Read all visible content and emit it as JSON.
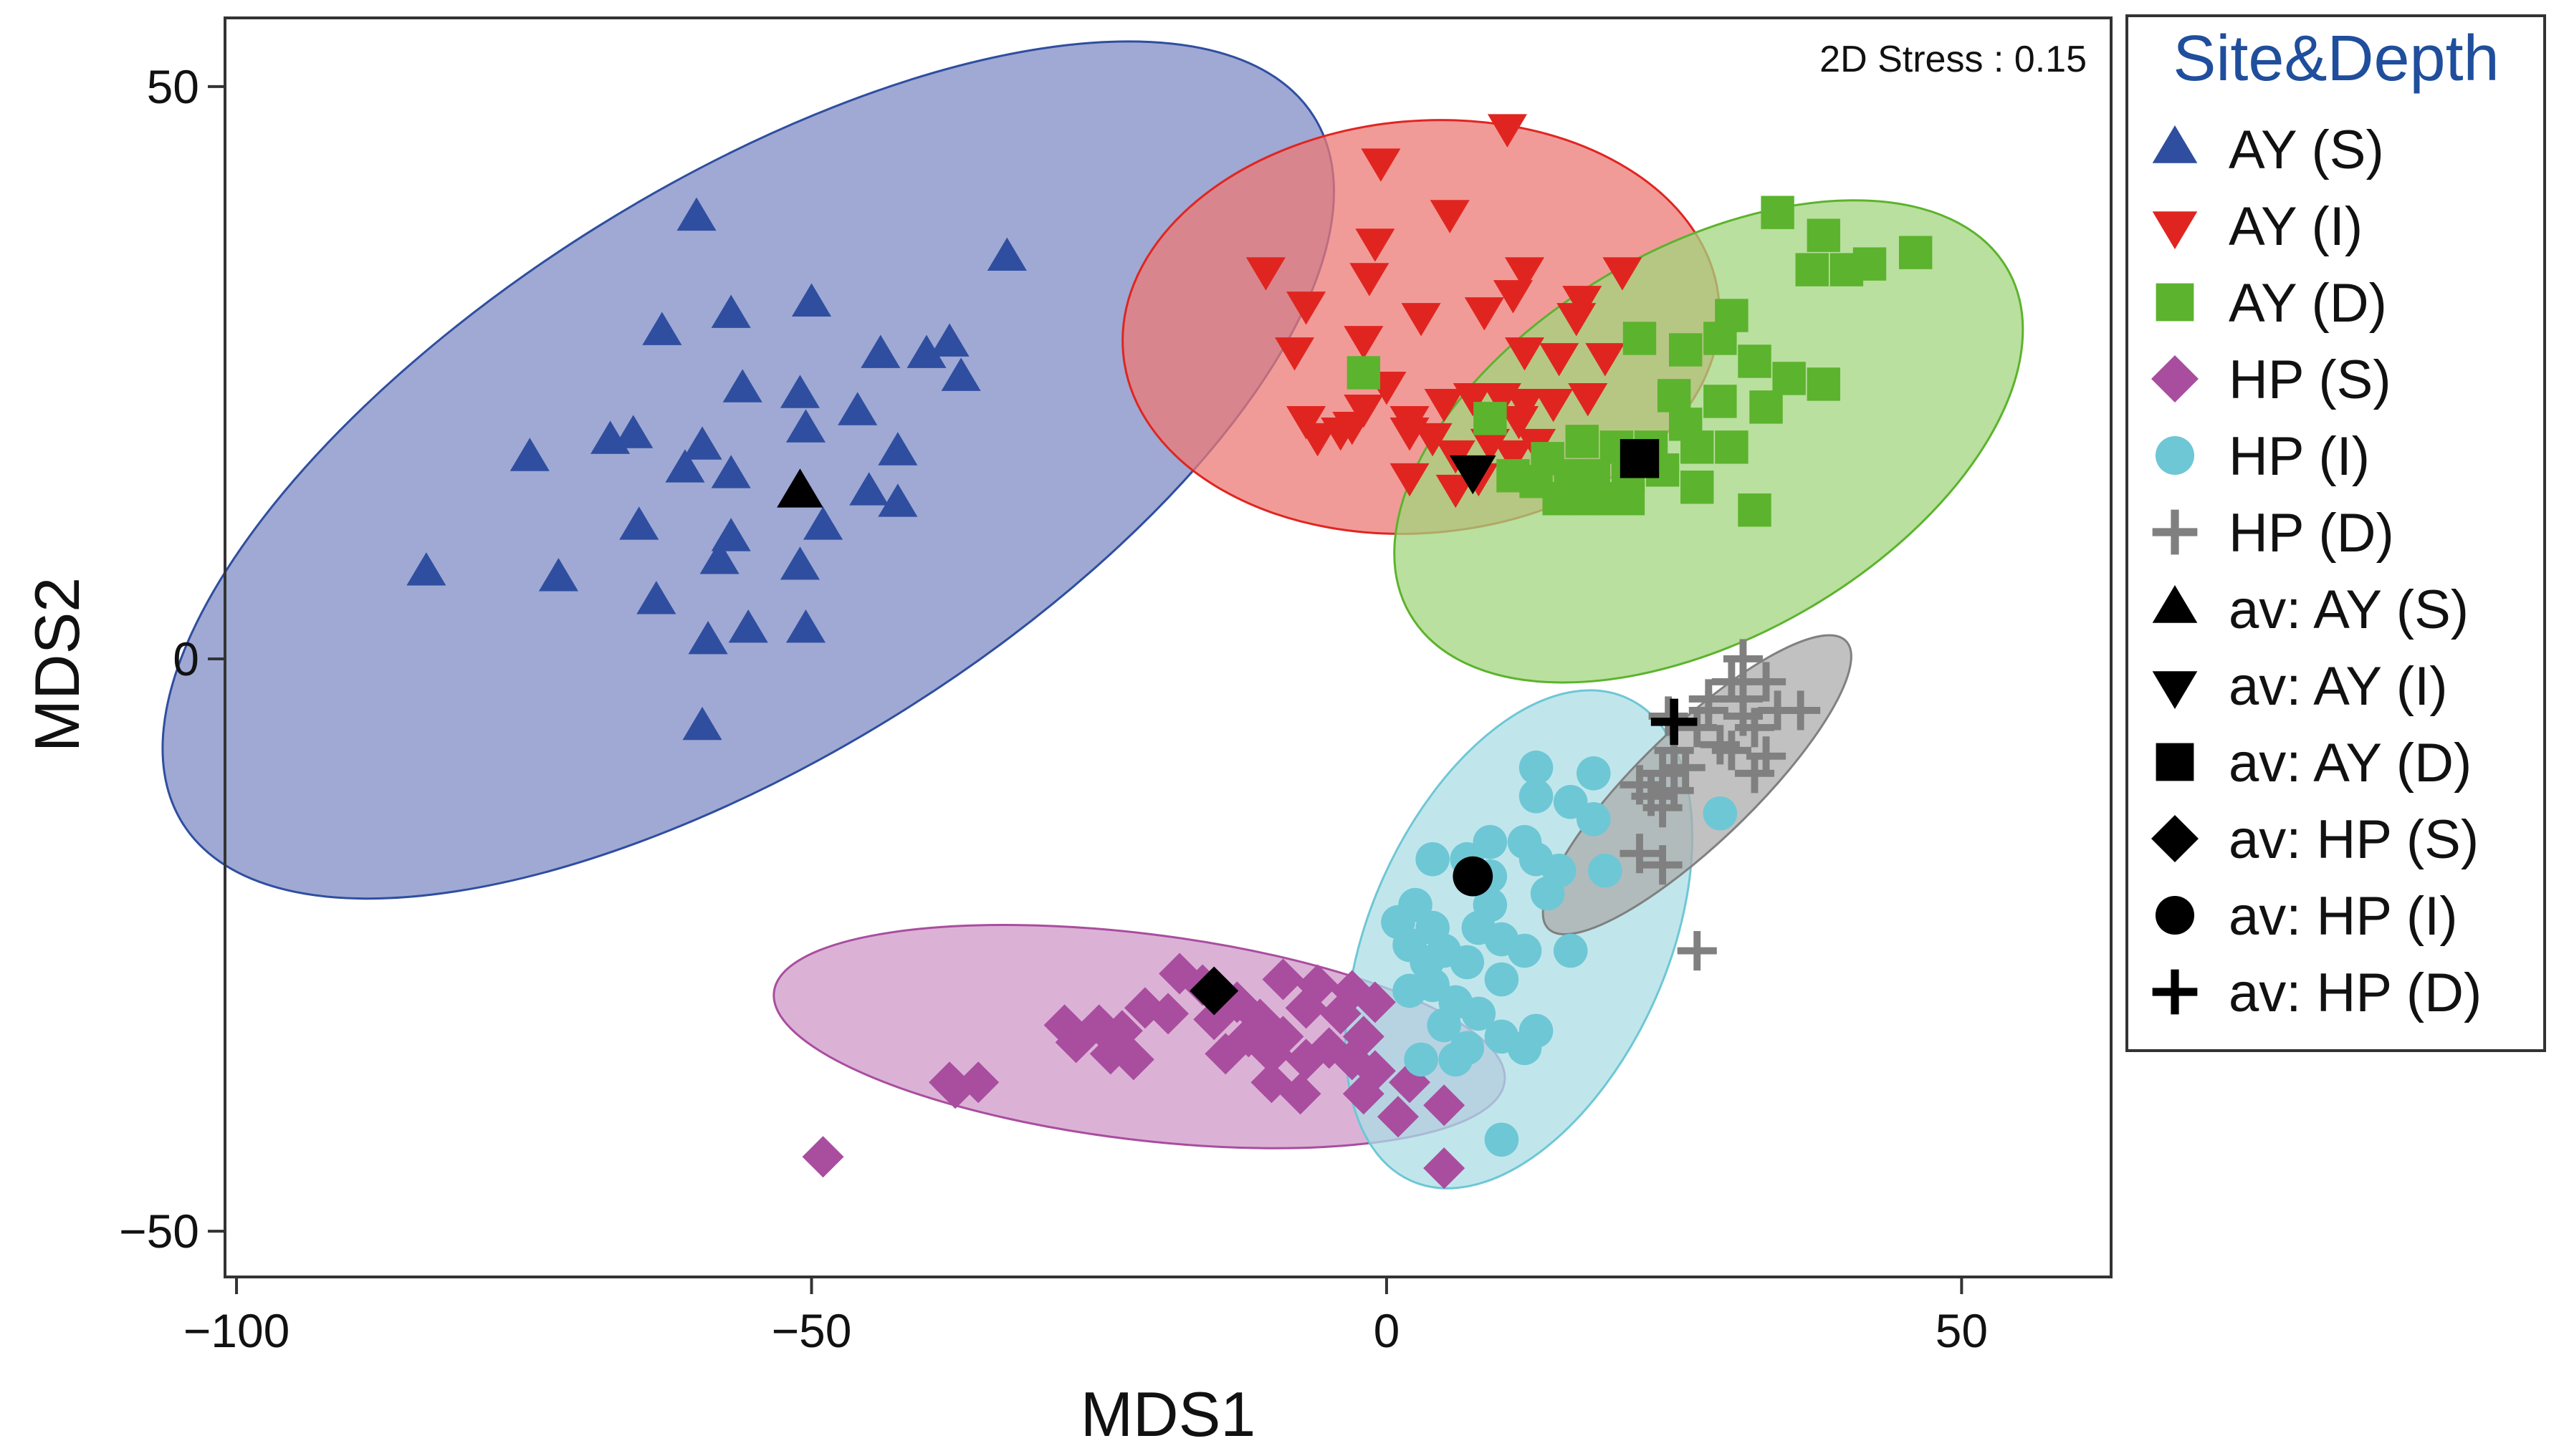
{
  "chart_data": {
    "type": "scatter",
    "title": "",
    "xlabel": "MDS1",
    "ylabel": "MDS2",
    "xlim": [
      -101,
      63
    ],
    "ylim": [
      -54,
      56
    ],
    "xticks": [
      -100,
      -50,
      0,
      50
    ],
    "yticks": [
      -50,
      0,
      50
    ],
    "xtick_labels": [
      "−100",
      "−50",
      "0",
      "50"
    ],
    "ytick_labels": [
      "−50",
      "0",
      "50"
    ],
    "grid": false,
    "annotation": "2D Stress : 0.15",
    "legend": {
      "title": "Site&Depth",
      "position": "right, outside plot"
    },
    "series": [
      {
        "name": "AY (S)",
        "marker": "triangle-up",
        "color": "#2f4ea0",
        "ellipse_color": "#7f8cc4",
        "ellipse": {
          "cx": -55.5,
          "cy": 16.5,
          "rx": 58,
          "ry": 25,
          "angle_deg": 32
        },
        "points": [
          [
            -83.5,
            7.5
          ],
          [
            -60,
            38.5
          ],
          [
            -33,
            35
          ],
          [
            -50,
            31
          ],
          [
            -57,
            30
          ],
          [
            -63,
            28.5
          ],
          [
            -44,
            26.5
          ],
          [
            -40,
            26.5
          ],
          [
            -38,
            27.5
          ],
          [
            -37,
            24.5
          ],
          [
            -56,
            23.5
          ],
          [
            -51,
            23
          ],
          [
            -46,
            21.5
          ],
          [
            -50.5,
            20
          ],
          [
            -67.5,
            19
          ],
          [
            -65.5,
            19.5
          ],
          [
            -59.5,
            18.5
          ],
          [
            -74.5,
            17.5
          ],
          [
            -61,
            16.5
          ],
          [
            -57,
            16
          ],
          [
            -42.5,
            18
          ],
          [
            -45,
            14.5
          ],
          [
            -42.5,
            13.5
          ],
          [
            -49,
            11.5
          ],
          [
            -65,
            11.5
          ],
          [
            -57,
            10.5
          ],
          [
            -51,
            8
          ],
          [
            -58,
            8.5
          ],
          [
            -72,
            7
          ],
          [
            -63.5,
            5
          ],
          [
            -55.5,
            2.5
          ],
          [
            -50.5,
            2.5
          ],
          [
            -59,
            1.5
          ],
          [
            -59.5,
            -6
          ]
        ]
      },
      {
        "name": "AY (I)",
        "marker": "triangle-down",
        "color": "#e02520",
        "ellipse_color": "#ec7a75",
        "ellipse": {
          "cx": 3,
          "cy": 29,
          "rx": 26,
          "ry": 18,
          "angle_deg": 5
        },
        "points": [
          [
            10.5,
            46.5
          ],
          [
            -0.5,
            43.5
          ],
          [
            5.5,
            39
          ],
          [
            -1,
            36.5
          ],
          [
            -10.5,
            34
          ],
          [
            -1.5,
            33.5
          ],
          [
            12,
            34
          ],
          [
            20.5,
            34
          ],
          [
            11,
            32
          ],
          [
            17,
            31.5
          ],
          [
            -7,
            31
          ],
          [
            3,
            30
          ],
          [
            8.5,
            30.5
          ],
          [
            16.5,
            30
          ],
          [
            -2,
            28
          ],
          [
            -8,
            27
          ],
          [
            12,
            27
          ],
          [
            15,
            26.5
          ],
          [
            19,
            26.5
          ],
          [
            0,
            24
          ],
          [
            5,
            22.5
          ],
          [
            7.5,
            23
          ],
          [
            10,
            23
          ],
          [
            12,
            22.5
          ],
          [
            14.5,
            22.5
          ],
          [
            17.5,
            23
          ],
          [
            -2,
            22
          ],
          [
            2,
            21
          ],
          [
            9,
            21
          ],
          [
            11.5,
            21
          ],
          [
            -7,
            21
          ],
          [
            -3,
            20.5
          ],
          [
            2,
            20
          ],
          [
            -4,
            20
          ],
          [
            -6,
            19.5
          ],
          [
            4,
            19.5
          ],
          [
            9,
            19
          ],
          [
            13,
            19
          ],
          [
            6,
            18
          ],
          [
            11,
            18
          ],
          [
            2,
            16
          ],
          [
            8,
            16
          ],
          [
            6,
            15
          ]
        ]
      },
      {
        "name": "AY (D)",
        "marker": "square",
        "color": "#5cb32e",
        "ellipse_color": "#a2d67e",
        "ellipse": {
          "cx": 28,
          "cy": 19,
          "rx": 30,
          "ry": 17,
          "angle_deg": 30
        },
        "points": [
          [
            34,
            39
          ],
          [
            38,
            37
          ],
          [
            42,
            34.5
          ],
          [
            46,
            35.5
          ],
          [
            37,
            34
          ],
          [
            40,
            34
          ],
          [
            30,
            30
          ],
          [
            22,
            28
          ],
          [
            29,
            28
          ],
          [
            26,
            27
          ],
          [
            32,
            26
          ],
          [
            35,
            24.5
          ],
          [
            38,
            24
          ],
          [
            25,
            23
          ],
          [
            29,
            22.5
          ],
          [
            33,
            22
          ],
          [
            26,
            20.5
          ],
          [
            -2,
            25
          ],
          [
            9,
            21
          ],
          [
            17,
            19
          ],
          [
            20,
            18.5
          ],
          [
            23,
            18.5
          ],
          [
            27,
            18.5
          ],
          [
            30,
            18.5
          ],
          [
            14,
            17.5
          ],
          [
            11,
            16
          ],
          [
            16,
            16
          ],
          [
            18,
            16
          ],
          [
            21,
            16
          ],
          [
            24,
            16.5
          ],
          [
            27,
            15
          ],
          [
            13,
            15.5
          ],
          [
            15,
            14
          ],
          [
            17,
            14
          ],
          [
            19,
            14
          ],
          [
            21,
            14
          ],
          [
            32,
            13
          ]
        ]
      },
      {
        "name": "HP (S)",
        "marker": "diamond",
        "color": "#a94d9f",
        "ellipse_color": "#cf98c8",
        "ellipse": {
          "cx": -21.5,
          "cy": -33,
          "rx": 32,
          "ry": 9,
          "angle_deg": -7
        },
        "points": [
          [
            -18,
            -27.5
          ],
          [
            -16,
            -28.5
          ],
          [
            -13,
            -30
          ],
          [
            -9,
            -28
          ],
          [
            -6,
            -28.5
          ],
          [
            -3,
            -29
          ],
          [
            -1,
            -30
          ],
          [
            -21,
            -30.5
          ],
          [
            -19,
            -31
          ],
          [
            -15,
            -31.5
          ],
          [
            -11,
            -31.5
          ],
          [
            -7,
            -30.5
          ],
          [
            -4,
            -31
          ],
          [
            -28,
            -32
          ],
          [
            -25,
            -32
          ],
          [
            -23,
            -32.5
          ],
          [
            -12,
            -33
          ],
          [
            -9,
            -33
          ],
          [
            -5,
            -34
          ],
          [
            -2,
            -33
          ],
          [
            -27,
            -33.5
          ],
          [
            -24,
            -34.5
          ],
          [
            -14,
            -34.5
          ],
          [
            -10,
            -34.5
          ],
          [
            -7,
            -35
          ],
          [
            -22,
            -35
          ],
          [
            -3,
            -35
          ],
          [
            -1,
            -36
          ],
          [
            -38,
            -37
          ],
          [
            -35.5,
            -37
          ],
          [
            -37.5,
            -37.5
          ],
          [
            -10,
            -37
          ],
          [
            -7.5,
            -38
          ],
          [
            -2,
            -38
          ],
          [
            2,
            -37
          ],
          [
            1,
            -40
          ],
          [
            5,
            -39
          ],
          [
            -49,
            -43.5
          ],
          [
            5,
            -44.5
          ]
        ]
      },
      {
        "name": "HP (I)",
        "marker": "circle",
        "color": "#6ec7d5",
        "ellipse_color": "#abdde5",
        "ellipse": {
          "cx": 11.5,
          "cy": -24.5,
          "rx": 23,
          "ry": 13,
          "angle_deg": 66
        },
        "points": [
          [
            13,
            -9.5
          ],
          [
            18,
            -10
          ],
          [
            13,
            -12
          ],
          [
            16,
            -12.5
          ],
          [
            18,
            -14
          ],
          [
            29,
            -13.5
          ],
          [
            9,
            -16
          ],
          [
            12,
            -16
          ],
          [
            7,
            -17.5
          ],
          [
            4,
            -17.5
          ],
          [
            13,
            -17.5
          ],
          [
            15,
            -18.5
          ],
          [
            9,
            -19
          ],
          [
            19,
            -18.5
          ],
          [
            14,
            -20.5
          ],
          [
            9,
            -21.5
          ],
          [
            2.5,
            -21.5
          ],
          [
            1,
            -23
          ],
          [
            4,
            -23.5
          ],
          [
            8,
            -23.5
          ],
          [
            10,
            -24.5
          ],
          [
            2,
            -25
          ],
          [
            5,
            -25.5
          ],
          [
            12,
            -25.5
          ],
          [
            16,
            -25.5
          ],
          [
            7,
            -26.5
          ],
          [
            3.5,
            -26.5
          ],
          [
            10,
            -28
          ],
          [
            4,
            -28.5
          ],
          [
            2,
            -29
          ],
          [
            6,
            -30
          ],
          [
            8,
            -31
          ],
          [
            5,
            -32
          ],
          [
            13,
            -32.5
          ],
          [
            10,
            -33
          ],
          [
            7,
            -34
          ],
          [
            12,
            -34
          ],
          [
            3,
            -35
          ],
          [
            6,
            -35
          ],
          [
            10,
            -42
          ]
        ]
      },
      {
        "name": "HP (D)",
        "marker": "plus",
        "color": "#808080",
        "ellipse_color": "#acacac",
        "ellipse": {
          "cx": 27,
          "cy": -11,
          "rx": 18,
          "ry": 5,
          "angle_deg": 44
        },
        "points": [
          [
            31,
            0
          ],
          [
            30,
            -2
          ],
          [
            33,
            -2
          ],
          [
            28,
            -3.5
          ],
          [
            31,
            -3.5
          ],
          [
            34,
            -4.5
          ],
          [
            36,
            -4.5
          ],
          [
            28,
            -4.5
          ],
          [
            31,
            -5
          ],
          [
            24.5,
            -5
          ],
          [
            27,
            -6
          ],
          [
            32,
            -6
          ],
          [
            29,
            -7.5
          ],
          [
            25,
            -8
          ],
          [
            30,
            -8
          ],
          [
            33,
            -8.5
          ],
          [
            26,
            -9.5
          ],
          [
            24,
            -10
          ],
          [
            32,
            -10
          ],
          [
            22,
            -11
          ],
          [
            25,
            -11.5
          ],
          [
            23,
            -12
          ],
          [
            24,
            -13
          ],
          [
            22,
            -17
          ],
          [
            24,
            -18
          ],
          [
            27,
            -25.5
          ]
        ]
      },
      {
        "name": "av: AY (S)",
        "marker": "triangle-up",
        "color": "#000000",
        "points": [
          [
            -51,
            14.5
          ]
        ]
      },
      {
        "name": "av: AY (I)",
        "marker": "triangle-down",
        "color": "#000000",
        "points": [
          [
            7.5,
            16.5
          ]
        ]
      },
      {
        "name": "av: AY (D)",
        "marker": "square",
        "color": "#000000",
        "points": [
          [
            22,
            17.5
          ]
        ]
      },
      {
        "name": "av: HP (S)",
        "marker": "diamond",
        "color": "#000000",
        "points": [
          [
            -15,
            -29
          ]
        ]
      },
      {
        "name": "av: HP (I)",
        "marker": "circle",
        "color": "#000000",
        "points": [
          [
            7.5,
            -19
          ]
        ]
      },
      {
        "name": "av: HP (D)",
        "marker": "plus",
        "color": "#000000",
        "points": [
          [
            25,
            -5.5
          ]
        ]
      }
    ]
  }
}
